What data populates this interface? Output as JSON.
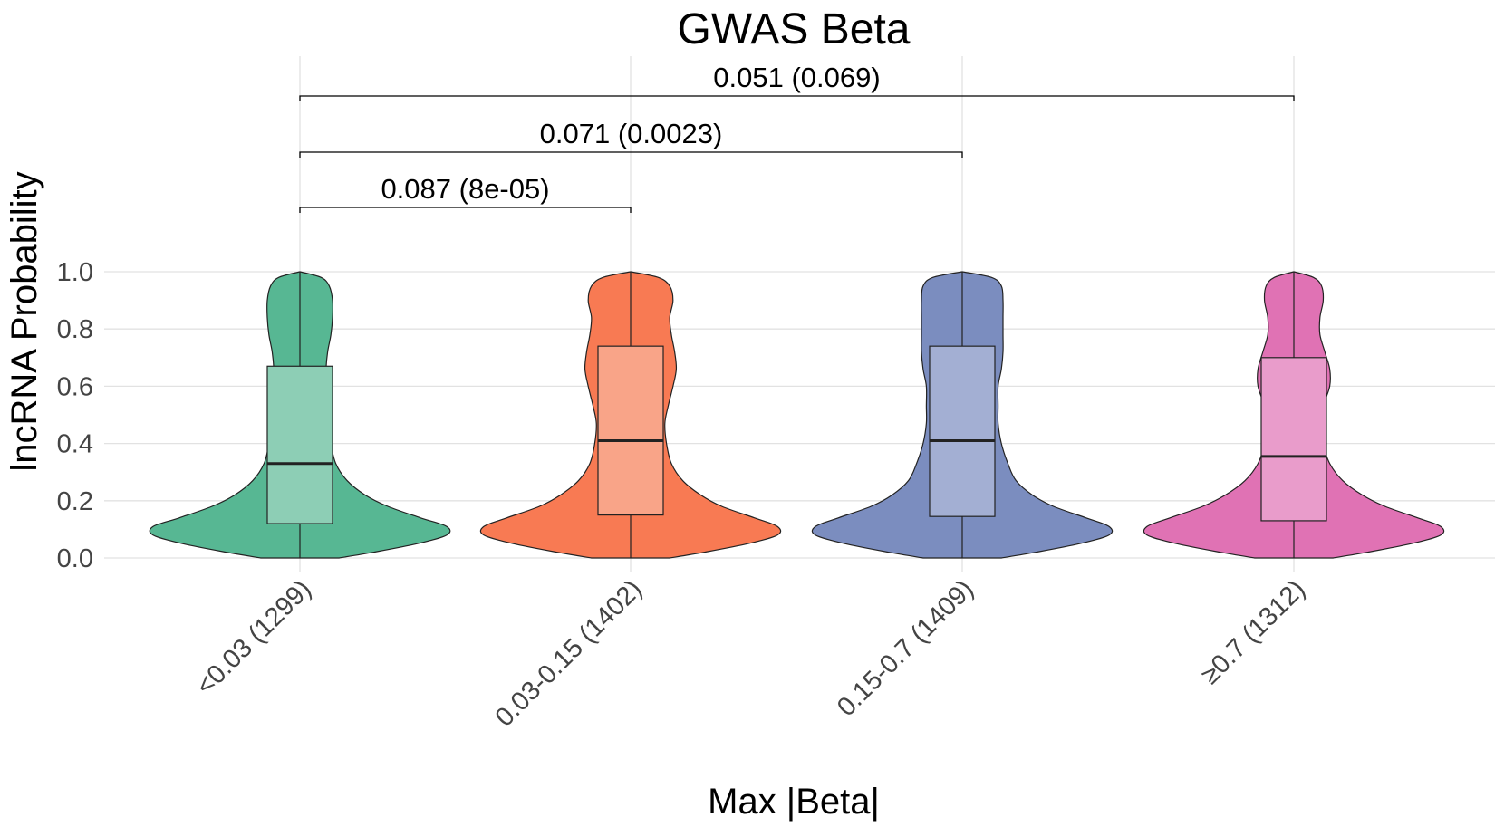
{
  "chart_data": {
    "type": "violin",
    "title": "GWAS Beta",
    "xlabel": "Max |Beta|",
    "ylabel": "lncRNA Probability",
    "ylim": [
      0,
      1
    ],
    "y_ticks": [
      "0.0",
      "0.2",
      "0.4",
      "0.6",
      "0.8",
      "1.0"
    ],
    "grid": true,
    "categories": [
      "<0.03 (1299)",
      "0.03-0.15 (1402)",
      "0.15-0.7 (1409)",
      "≥0.7 (1312)"
    ],
    "colors": [
      "#57b793",
      "#f87a53",
      "#7b8dbf",
      "#e072b4"
    ],
    "box_colors": [
      "#8dceb5",
      "#f9a488",
      "#a3afd3",
      "#e99ccb"
    ],
    "boxes": [
      {
        "q1": 0.12,
        "median": 0.33,
        "q3": 0.67,
        "whisker_low": 0.0,
        "whisker_high": 1.0
      },
      {
        "q1": 0.15,
        "median": 0.41,
        "q3": 0.74,
        "whisker_low": 0.0,
        "whisker_high": 1.0
      },
      {
        "q1": 0.145,
        "median": 0.41,
        "q3": 0.74,
        "whisker_low": 0.0,
        "whisker_high": 1.0
      },
      {
        "q1": 0.13,
        "median": 0.355,
        "q3": 0.7,
        "whisker_low": 0.0,
        "whisker_high": 1.0
      }
    ],
    "density_profiles": [
      {
        "y": [
          0.0,
          0.02,
          0.05,
          0.08,
          0.11,
          0.14,
          0.18,
          0.22,
          0.27,
          0.33,
          0.4,
          0.47,
          0.53,
          0.6,
          0.66,
          0.72,
          0.78,
          0.84,
          0.9,
          0.95,
          0.98,
          1.0
        ],
        "width": [
          0.24,
          0.45,
          0.72,
          0.9,
          0.9,
          0.74,
          0.54,
          0.4,
          0.29,
          0.22,
          0.19,
          0.18,
          0.17,
          0.16,
          0.16,
          0.17,
          0.19,
          0.2,
          0.2,
          0.18,
          0.13,
          0.0
        ]
      },
      {
        "y": [
          0.0,
          0.02,
          0.05,
          0.08,
          0.11,
          0.14,
          0.18,
          0.22,
          0.27,
          0.33,
          0.4,
          0.47,
          0.53,
          0.6,
          0.66,
          0.72,
          0.78,
          0.84,
          0.9,
          0.95,
          0.98,
          1.0
        ],
        "width": [
          0.24,
          0.45,
          0.72,
          0.9,
          0.9,
          0.76,
          0.56,
          0.43,
          0.32,
          0.25,
          0.22,
          0.21,
          0.23,
          0.26,
          0.28,
          0.27,
          0.25,
          0.24,
          0.26,
          0.24,
          0.17,
          0.0
        ]
      },
      {
        "y": [
          0.0,
          0.02,
          0.05,
          0.08,
          0.11,
          0.14,
          0.18,
          0.22,
          0.27,
          0.33,
          0.4,
          0.47,
          0.53,
          0.6,
          0.66,
          0.72,
          0.78,
          0.84,
          0.9,
          0.95,
          0.98,
          1.0
        ],
        "width": [
          0.24,
          0.45,
          0.72,
          0.9,
          0.9,
          0.76,
          0.56,
          0.43,
          0.33,
          0.28,
          0.24,
          0.22,
          0.22,
          0.22,
          0.24,
          0.25,
          0.25,
          0.25,
          0.25,
          0.24,
          0.18,
          0.0
        ]
      },
      {
        "y": [
          0.0,
          0.02,
          0.05,
          0.08,
          0.11,
          0.14,
          0.18,
          0.22,
          0.27,
          0.33,
          0.4,
          0.47,
          0.53,
          0.6,
          0.66,
          0.72,
          0.78,
          0.84,
          0.9,
          0.95,
          0.98,
          1.0
        ],
        "width": [
          0.24,
          0.45,
          0.72,
          0.9,
          0.9,
          0.76,
          0.56,
          0.42,
          0.3,
          0.22,
          0.18,
          0.17,
          0.18,
          0.22,
          0.22,
          0.19,
          0.16,
          0.16,
          0.18,
          0.17,
          0.12,
          0.0
        ]
      }
    ],
    "comparisons": [
      {
        "from": 0,
        "to": 1,
        "label": "0.087 (8e-05)"
      },
      {
        "from": 0,
        "to": 2,
        "label": "0.071 (0.0023)"
      },
      {
        "from": 0,
        "to": 3,
        "label": "0.051 (0.069)"
      }
    ]
  }
}
